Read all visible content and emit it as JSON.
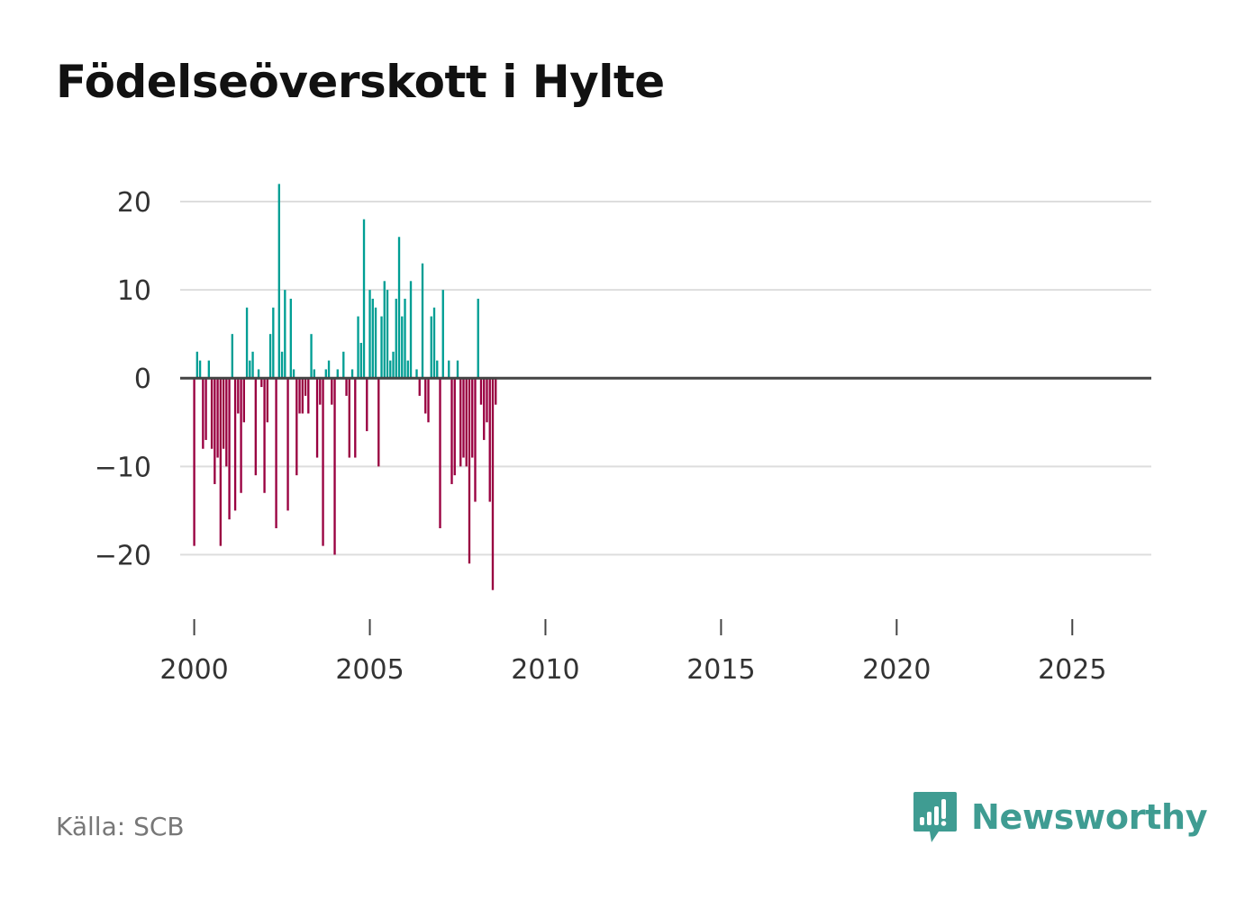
{
  "title": "Födelseöverskott i Hylte",
  "source": "Källa: SCB",
  "logo": {
    "name": "Newsworthy",
    "icon": "newsworthy-logo-icon"
  },
  "colors": {
    "positive": "#009e94",
    "negative": "#990040",
    "grid": "#dddddd",
    "zero": "#444444",
    "brand": "#3f9c92"
  },
  "chart_data": {
    "type": "bar",
    "title": "Födelseöverskott i Hylte",
    "xlabel": "",
    "ylabel": "",
    "frequency": "monthly",
    "x_start": 2000,
    "xlim": [
      1999.6,
      2027.25
    ],
    "ylim": [
      -27.5,
      25
    ],
    "yticks": [
      20,
      10,
      0,
      -10,
      -20
    ],
    "ytick_labels": [
      "20",
      "10",
      "0",
      "−10",
      "−20"
    ],
    "xticks": [
      2000,
      2005,
      2010,
      2015,
      2020,
      2025
    ],
    "xtick_labels": [
      "2000",
      "2005",
      "2010",
      "2015",
      "2020",
      "2025"
    ],
    "grid": true,
    "values": [
      -19,
      3,
      2,
      -8,
      -7,
      2,
      -8,
      -12,
      -9,
      -19,
      -8,
      -10,
      -16,
      5,
      -15,
      -4,
      -13,
      -5,
      8,
      2,
      3,
      -11,
      1,
      -1,
      -13,
      -5,
      5,
      8,
      -17,
      22,
      3,
      10,
      -15,
      9,
      1,
      -11,
      -4,
      -4,
      -2,
      -4,
      5,
      1,
      -9,
      -3,
      -19,
      1,
      2,
      -3,
      -20,
      1,
      0,
      3,
      -2,
      -9,
      1,
      -9,
      7,
      4,
      18,
      -6,
      10,
      9,
      8,
      -10,
      7,
      11,
      10,
      2,
      3,
      9,
      16,
      7,
      9,
      2,
      11,
      0,
      1,
      -2,
      13,
      -4,
      -5,
      7,
      8,
      2,
      -17,
      10,
      0,
      2,
      -12,
      -11,
      2,
      -10,
      -9,
      -10,
      -21,
      -9,
      -14,
      9,
      -3,
      -7,
      -5,
      -14,
      -24,
      -3
    ]
  }
}
